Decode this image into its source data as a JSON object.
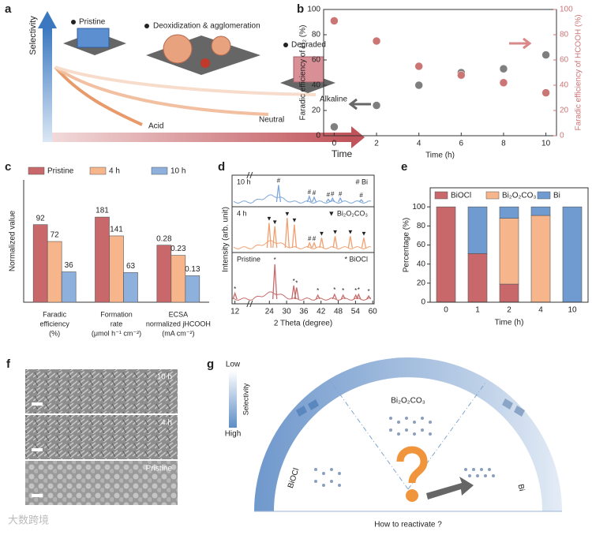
{
  "figure": {
    "panel_labels": [
      "a",
      "b",
      "c",
      "d",
      "e",
      "f",
      "g"
    ]
  },
  "panel_a": {
    "y_axis": "Selectivity",
    "x_axis": "Time",
    "states": [
      "Pristine",
      "Deoxidization & agglomeration",
      "Degraded"
    ],
    "curves": [
      "Alkaline",
      "Neutral",
      "Acid"
    ]
  },
  "chart_data": [
    {
      "type": "scatter",
      "x_label": "Time (h)",
      "y_label": "Faradic efficiency of H₂ (%)",
      "y2_label": "Faradic efficiency of HCOOH (%)",
      "x": [
        0,
        2,
        4,
        6,
        8,
        10
      ],
      "series": [
        {
          "color": "#7f7f7f",
          "values": [
            7,
            24,
            40,
            50,
            53,
            64
          ]
        },
        {
          "color": "#cc7575",
          "values": [
            91,
            75,
            55,
            48,
            42,
            34
          ],
          "axis": "y2"
        }
      ],
      "xlim": [
        -0.5,
        10.5
      ],
      "xticks": [
        0,
        2,
        4,
        6,
        8,
        10
      ],
      "ylim": [
        0,
        100
      ],
      "yticks": [
        0,
        20,
        40,
        60,
        80,
        100
      ],
      "y2lim": [
        0,
        100
      ],
      "y2ticks": [
        0,
        20,
        40,
        60,
        80,
        100
      ]
    },
    {
      "type": "bar",
      "y_label": "Normalized value",
      "categories": [
        [
          "Faradic",
          "efficiency",
          "(%)"
        ],
        [
          "Formation",
          "rate",
          "(μmol h⁻¹ cm⁻²)"
        ],
        [
          "ECSA",
          "normalized jHCOOH",
          "(mA cm⁻²)"
        ]
      ],
      "ylims": [
        [
          0,
          145
        ],
        [
          0,
          260
        ],
        [
          0,
          0.6
        ]
      ],
      "series": [
        {
          "name": "Pristine",
          "color": "#c8686b",
          "values": [
            92,
            181,
            0.28
          ]
        },
        {
          "name": "4 h",
          "color": "#f7b58c",
          "values": [
            72,
            141,
            0.23
          ]
        },
        {
          "name": "10 h",
          "color": "#8db0dc",
          "values": [
            36,
            63,
            0.13
          ]
        }
      ]
    },
    {
      "type": "line",
      "x_label": "2 Theta (degree)",
      "y_label": "Intensity (arb. unit)",
      "xlim": [
        11,
        60.5
      ],
      "xticks": [
        12,
        24,
        30,
        36,
        42,
        48,
        54,
        60
      ],
      "ylim": [
        0,
        1
      ],
      "legend": [
        "# Bi",
        "▼ Bi₂O₂CO₃",
        "* BiOCl"
      ],
      "series": [
        {
          "name": "10 h",
          "color": "#7ea6d8",
          "x": [
            27.2,
            37.9,
            39.6,
            44.5,
            46,
            48.7,
            56
          ],
          "values": [
            0.9,
            0.3,
            0.25,
            0.15,
            0.2,
            0.2,
            0.12
          ],
          "symbols": [
            "#",
            "#",
            "#",
            "#",
            "#",
            "#",
            "#"
          ]
        },
        {
          "name": "4 h",
          "color": "#f0a070",
          "x": [
            23.9,
            25.9,
            30.2,
            32.7,
            38,
            39.6,
            42.2,
            46.9,
            52.2,
            56.9
          ],
          "values": [
            0.75,
            0.65,
            0.9,
            0.7,
            0.15,
            0.15,
            0.3,
            0.35,
            0.35,
            0.3
          ],
          "symbols": [
            "▼",
            "▼",
            "▼",
            "▼",
            "#",
            "#",
            "▼",
            "▼",
            "▼",
            "▼"
          ]
        },
        {
          "name": "Pristine",
          "color": "#c86b6b",
          "x": [
            12,
            25.9,
            32.5,
            33.5,
            40.9,
            46.7,
            49.7,
            54.1,
            55.1,
            58.6
          ],
          "values": [
            0.15,
            0.9,
            0.35,
            0.3,
            0.1,
            0.12,
            0.1,
            0.1,
            0.12,
            0.08
          ],
          "symbols": [
            "*",
            "*",
            "*",
            "*",
            "*",
            "*",
            "*",
            "*",
            "*",
            "*"
          ]
        }
      ]
    },
    {
      "type": "bar",
      "stacked": true,
      "x_label": "Time (h)",
      "y_label": "Percentage (%)",
      "categories": [
        "0",
        "1",
        "2",
        "4",
        "10"
      ],
      "series": [
        {
          "name": "BiOCl",
          "color": "#c8686b",
          "values": [
            100,
            51,
            19,
            0,
            0
          ]
        },
        {
          "name": "Bi₂O₂CO₃",
          "color": "#f7b58c",
          "values": [
            0,
            0,
            69,
            91,
            0
          ]
        },
        {
          "name": "Bi",
          "color": "#6f9bd1",
          "values": [
            0,
            49,
            12,
            9,
            100
          ]
        }
      ],
      "ylim": [
        0,
        120
      ],
      "yticks": [
        0,
        20,
        40,
        60,
        80,
        100
      ]
    }
  ],
  "panel_f": {
    "labels": [
      "10 h",
      "4 h",
      "Pristine"
    ]
  },
  "panel_g": {
    "scale_top": "Low",
    "scale_bottom": "High",
    "scale_label": "Selectivity",
    "phases": [
      "BiOCl",
      "Bi₂O₂CO₃",
      "Bi"
    ],
    "question": "How to reactivate ?"
  },
  "watermark": "大数跨境"
}
